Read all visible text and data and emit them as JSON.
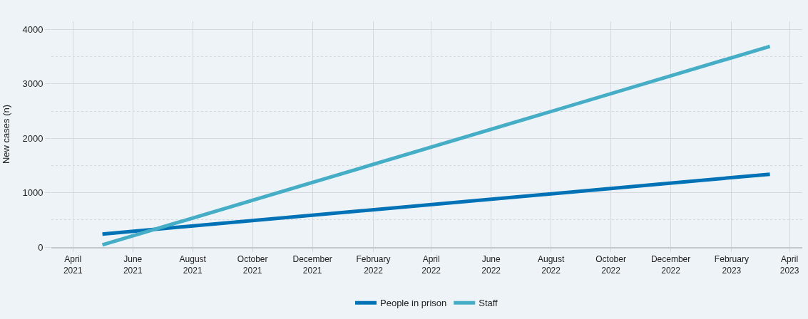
{
  "chart_data": {
    "type": "line",
    "ylabel": "New cases (n)",
    "series": [
      {
        "name": "People in prison",
        "color": "#0072b5",
        "x": [
          "2021-05-01",
          "2023-03-12"
        ],
        "values": [
          240,
          1340
        ]
      },
      {
        "name": "Staff",
        "color": "#45adc6",
        "x": [
          "2021-05-01",
          "2023-03-12"
        ],
        "values": [
          40,
          3690
        ]
      }
    ],
    "xlim": [
      "2021-03-10",
      "2023-04-14"
    ],
    "xticks": [
      {
        "value": "2021-04-01",
        "label": "April\n2021"
      },
      {
        "value": "2021-06-01",
        "label": "June\n2021"
      },
      {
        "value": "2021-08-01",
        "label": "August\n2021"
      },
      {
        "value": "2021-10-01",
        "label": "October\n2021"
      },
      {
        "value": "2021-12-01",
        "label": "December\n2021"
      },
      {
        "value": "2022-02-01",
        "label": "February\n2022"
      },
      {
        "value": "2022-04-01",
        "label": "April\n2022"
      },
      {
        "value": "2022-06-01",
        "label": "June\n2022"
      },
      {
        "value": "2022-08-01",
        "label": "August\n2022"
      },
      {
        "value": "2022-10-01",
        "label": "October\n2022"
      },
      {
        "value": "2022-12-01",
        "label": "December\n2022"
      },
      {
        "value": "2023-02-01",
        "label": "February\n2023"
      },
      {
        "value": "2023-04-01",
        "label": "April\n2023"
      }
    ],
    "ylim": [
      0,
      4150
    ],
    "yticks": [
      0,
      {
        "value": 500,
        "label": null
      },
      1000,
      {
        "value": 1500,
        "label": null
      },
      2000,
      {
        "value": 2500,
        "label": null
      },
      3000,
      {
        "value": 3500,
        "label": null
      },
      4000
    ],
    "grid": true,
    "legend": "bottom",
    "marker": "none",
    "line_style": "solid"
  }
}
